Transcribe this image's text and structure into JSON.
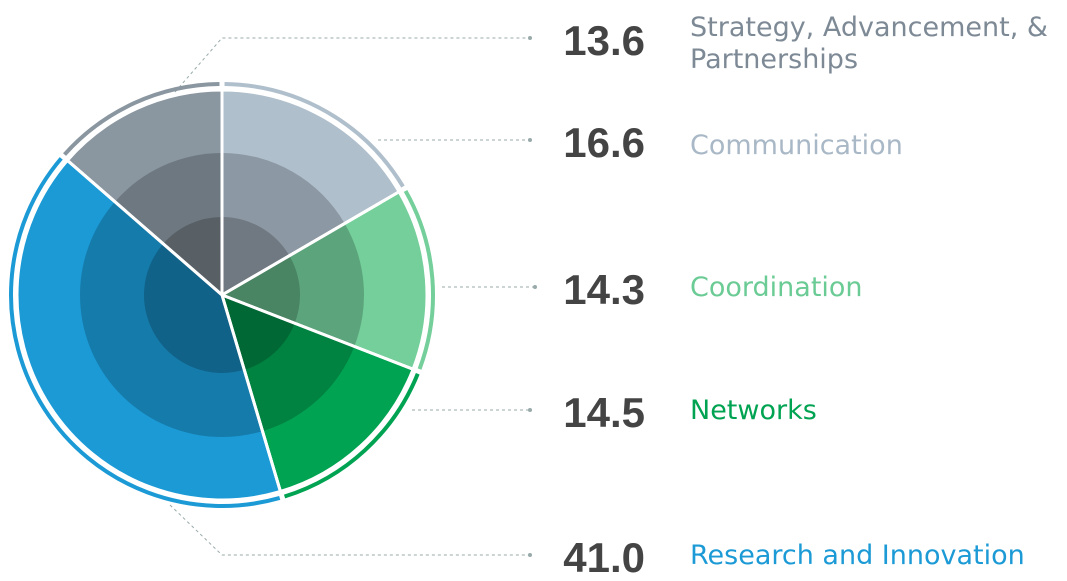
{
  "chart_data": {
    "type": "pie",
    "categories": [
      "Strategy, Advancement, & Partnerships",
      "Communication",
      "Coordination",
      "Networks",
      "Research and Innovation"
    ],
    "values": [
      13.6,
      16.6,
      14.3,
      14.5,
      41.0
    ],
    "value_labels": [
      "13.6",
      "16.6",
      "14.3",
      "14.5",
      "41.0"
    ],
    "colors": [
      "#8a96a0",
      "#b0bfcc",
      "#74cf9b",
      "#00a352",
      "#1b9ad6"
    ]
  }
}
